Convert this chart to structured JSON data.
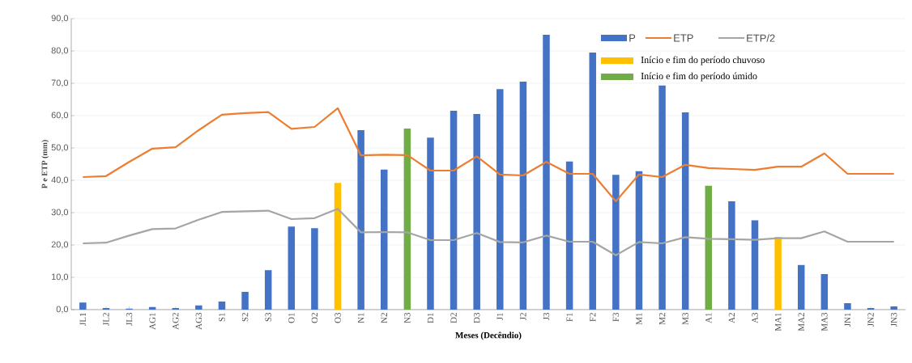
{
  "chart_data": {
    "type": "bar",
    "xlabel": "Meses (Decêndio)",
    "ylabel": "P e ETP (mm)",
    "categories": [
      "JL1",
      "JL2",
      "JL3",
      "AG1",
      "AG2",
      "AG3",
      "S1",
      "S2",
      "S3",
      "O1",
      "O2",
      "O3",
      "N1",
      "N2",
      "N3",
      "D1",
      "D2",
      "D3",
      "J1",
      "J2",
      "J3",
      "F1",
      "F2",
      "F3",
      "M1",
      "M2",
      "M3",
      "A1",
      "A2",
      "A3",
      "MA1",
      "MA2",
      "MA3",
      "JN1",
      "JN2",
      "JN3"
    ],
    "series": [
      {
        "name": "P",
        "color": "#4472c4",
        "values": [
          2.2,
          0.5,
          0.3,
          0.8,
          0.5,
          1.3,
          2.5,
          5.5,
          12.2,
          25.7,
          25.2,
          null,
          55.5,
          43.3,
          null,
          53.2,
          61.5,
          60.5,
          68.2,
          70.5,
          85,
          45.8,
          79.5,
          41.7,
          42.8,
          69.3,
          61,
          null,
          33.5,
          27.6,
          null,
          13.8,
          11,
          2,
          0.5,
          1
        ]
      },
      {
        "name": "ETP",
        "type": "line",
        "color": "#ed7d31",
        "values": [
          41,
          41.3,
          45.7,
          49.8,
          50.2,
          55.5,
          60.3,
          60.8,
          61.1,
          55.9,
          56.5,
          62.3,
          47.7,
          47.9,
          47.8,
          43,
          43,
          47.4,
          41.8,
          41.5,
          45.7,
          42,
          42,
          33.5,
          41.8,
          41,
          44.8,
          43.8,
          43.5,
          43.2,
          44.2,
          44.2,
          48.3,
          42,
          42,
          42
        ]
      },
      {
        "name": "ETP/2",
        "type": "line",
        "color": "#a5a5a5",
        "values": [
          20.5,
          20.7,
          22.9,
          24.9,
          25.1,
          27.8,
          30.2,
          30.4,
          30.6,
          28,
          28.3,
          31.2,
          23.9,
          24,
          23.9,
          21.5,
          21.5,
          23.7,
          20.9,
          20.8,
          22.9,
          21,
          21,
          16.8,
          20.9,
          20.5,
          22.4,
          21.9,
          21.8,
          21.6,
          22.1,
          22.1,
          24.2,
          21,
          21,
          21
        ]
      },
      {
        "name": "Início e fim do período chuvoso",
        "color": "#ffc000",
        "values": [
          null,
          null,
          null,
          null,
          null,
          null,
          null,
          null,
          null,
          null,
          null,
          39.2,
          null,
          null,
          null,
          null,
          null,
          null,
          null,
          null,
          null,
          null,
          null,
          null,
          null,
          null,
          null,
          null,
          null,
          null,
          22.5,
          null,
          null,
          null,
          null,
          null
        ]
      },
      {
        "name": "Início e fim do período úmido",
        "color": "#70ad47",
        "values": [
          null,
          null,
          null,
          null,
          null,
          null,
          null,
          null,
          null,
          null,
          null,
          null,
          null,
          null,
          56,
          null,
          null,
          null,
          null,
          null,
          null,
          null,
          null,
          null,
          null,
          null,
          null,
          38.3,
          null,
          null,
          null,
          null,
          null,
          null,
          null,
          null
        ]
      }
    ],
    "ylim": [
      0,
      90
    ],
    "yticks": [
      {
        "value": 0,
        "label": "0,0"
      },
      {
        "value": 10,
        "label": "10,0"
      },
      {
        "value": 20,
        "label": "20,0"
      },
      {
        "value": 30,
        "label": "30,0"
      },
      {
        "value": 40,
        "label": "40,0"
      },
      {
        "value": 50,
        "label": "50,0"
      },
      {
        "value": 60,
        "label": "60,0"
      },
      {
        "value": 70,
        "label": "70,0"
      },
      {
        "value": 80,
        "label": "80,0"
      },
      {
        "value": 90,
        "label": "90,0"
      }
    ],
    "grid": "y",
    "legend": "top right",
    "marker": "none",
    "line_style": "solid"
  }
}
